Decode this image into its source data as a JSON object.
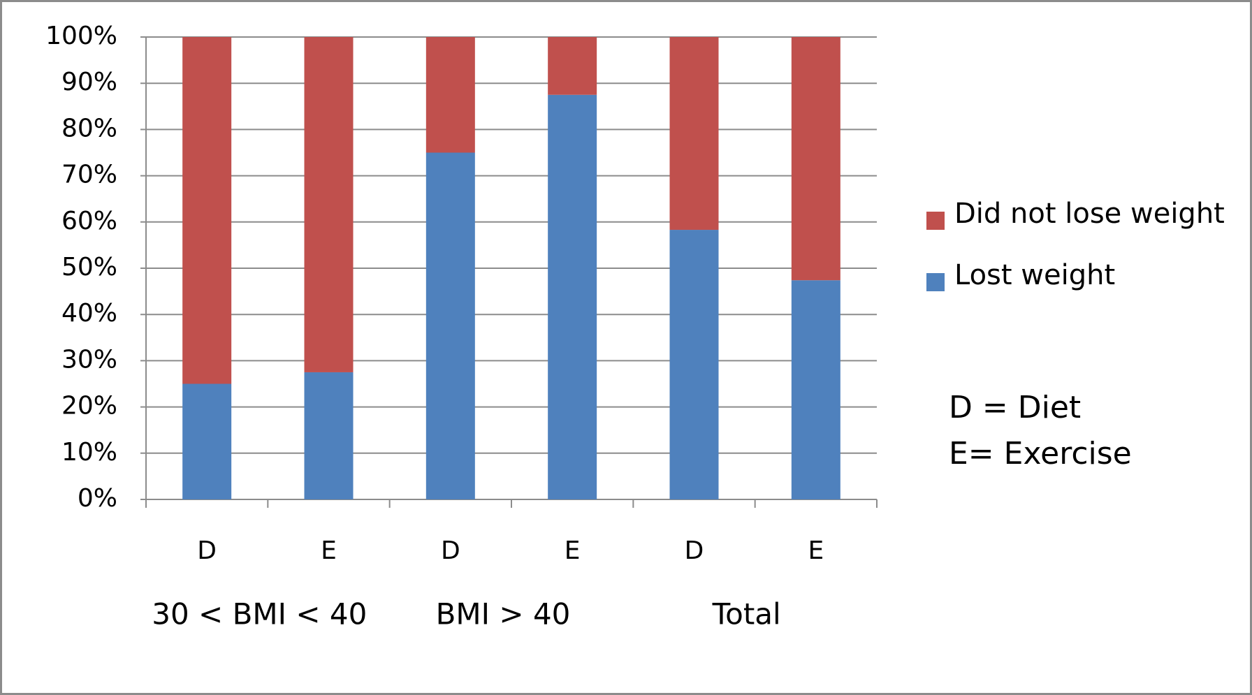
{
  "chart_data": {
    "type": "stacked_bar",
    "categories": [
      "D",
      "E",
      "D",
      "E",
      "D",
      "E"
    ],
    "groups": [
      "30 < BMI < 40",
      "BMI > 40",
      "Total"
    ],
    "series": [
      {
        "name": "Lost weight",
        "color": "#4f81bd",
        "values": [
          25,
          27.5,
          75,
          87.5,
          58.3,
          47.4
        ]
      },
      {
        "name": "Did not lose weight",
        "color": "#c0504d",
        "values": [
          75,
          72.5,
          25,
          12.5,
          41.7,
          52.6
        ]
      }
    ],
    "ylim": [
      0,
      100
    ],
    "yticks": [
      {
        "value": 0,
        "label": "0%"
      },
      {
        "value": 10,
        "label": "10%"
      },
      {
        "value": 20,
        "label": "20%"
      },
      {
        "value": 30,
        "label": "30%"
      },
      {
        "value": 40,
        "label": "40%"
      },
      {
        "value": 50,
        "label": "50%"
      },
      {
        "value": 60,
        "label": "60%"
      },
      {
        "value": 70,
        "label": "70%"
      },
      {
        "value": 80,
        "label": "80%"
      },
      {
        "value": 90,
        "label": "90%"
      },
      {
        "value": 100,
        "label": "100%"
      }
    ],
    "grid": true,
    "legend": "right",
    "annotations": [
      "D = Diet",
      "E= Exercise"
    ]
  }
}
